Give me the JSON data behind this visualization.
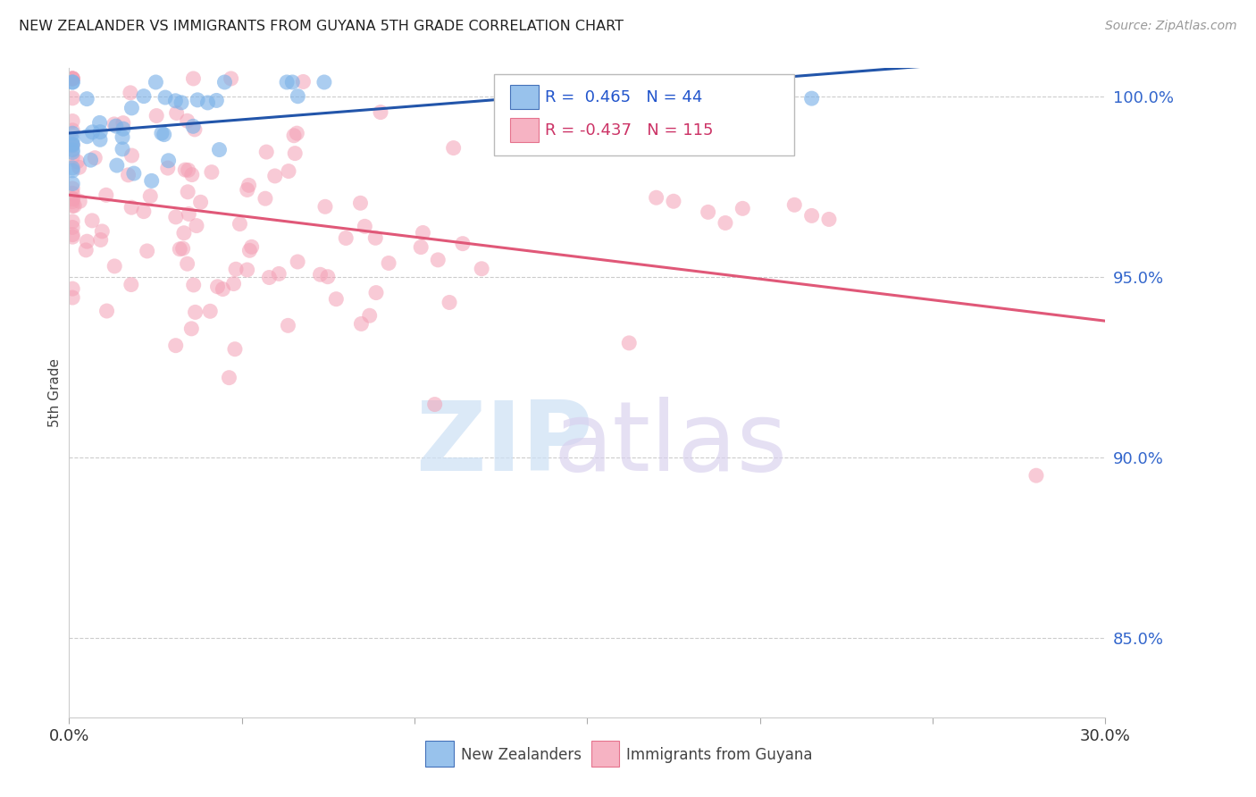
{
  "title": "NEW ZEALANDER VS IMMIGRANTS FROM GUYANA 5TH GRADE CORRELATION CHART",
  "source": "Source: ZipAtlas.com",
  "ylabel": "5th Grade",
  "xlim": [
    0.0,
    0.3
  ],
  "ylim": [
    0.828,
    1.008
  ],
  "yticks": [
    0.85,
    0.9,
    0.95,
    1.0
  ],
  "ytick_labels": [
    "85.0%",
    "90.0%",
    "95.0%",
    "100.0%"
  ],
  "blue_color": "#7EB3E8",
  "pink_color": "#F4A0B5",
  "blue_line_color": "#2255AA",
  "pink_line_color": "#E05878",
  "blue_R": 0.465,
  "blue_N": 44,
  "pink_R": -0.437,
  "pink_N": 115,
  "seed": 42,
  "legend_r1_text": "R =  0.465   N = 44",
  "legend_r2_text": "R = -0.437   N = 115"
}
